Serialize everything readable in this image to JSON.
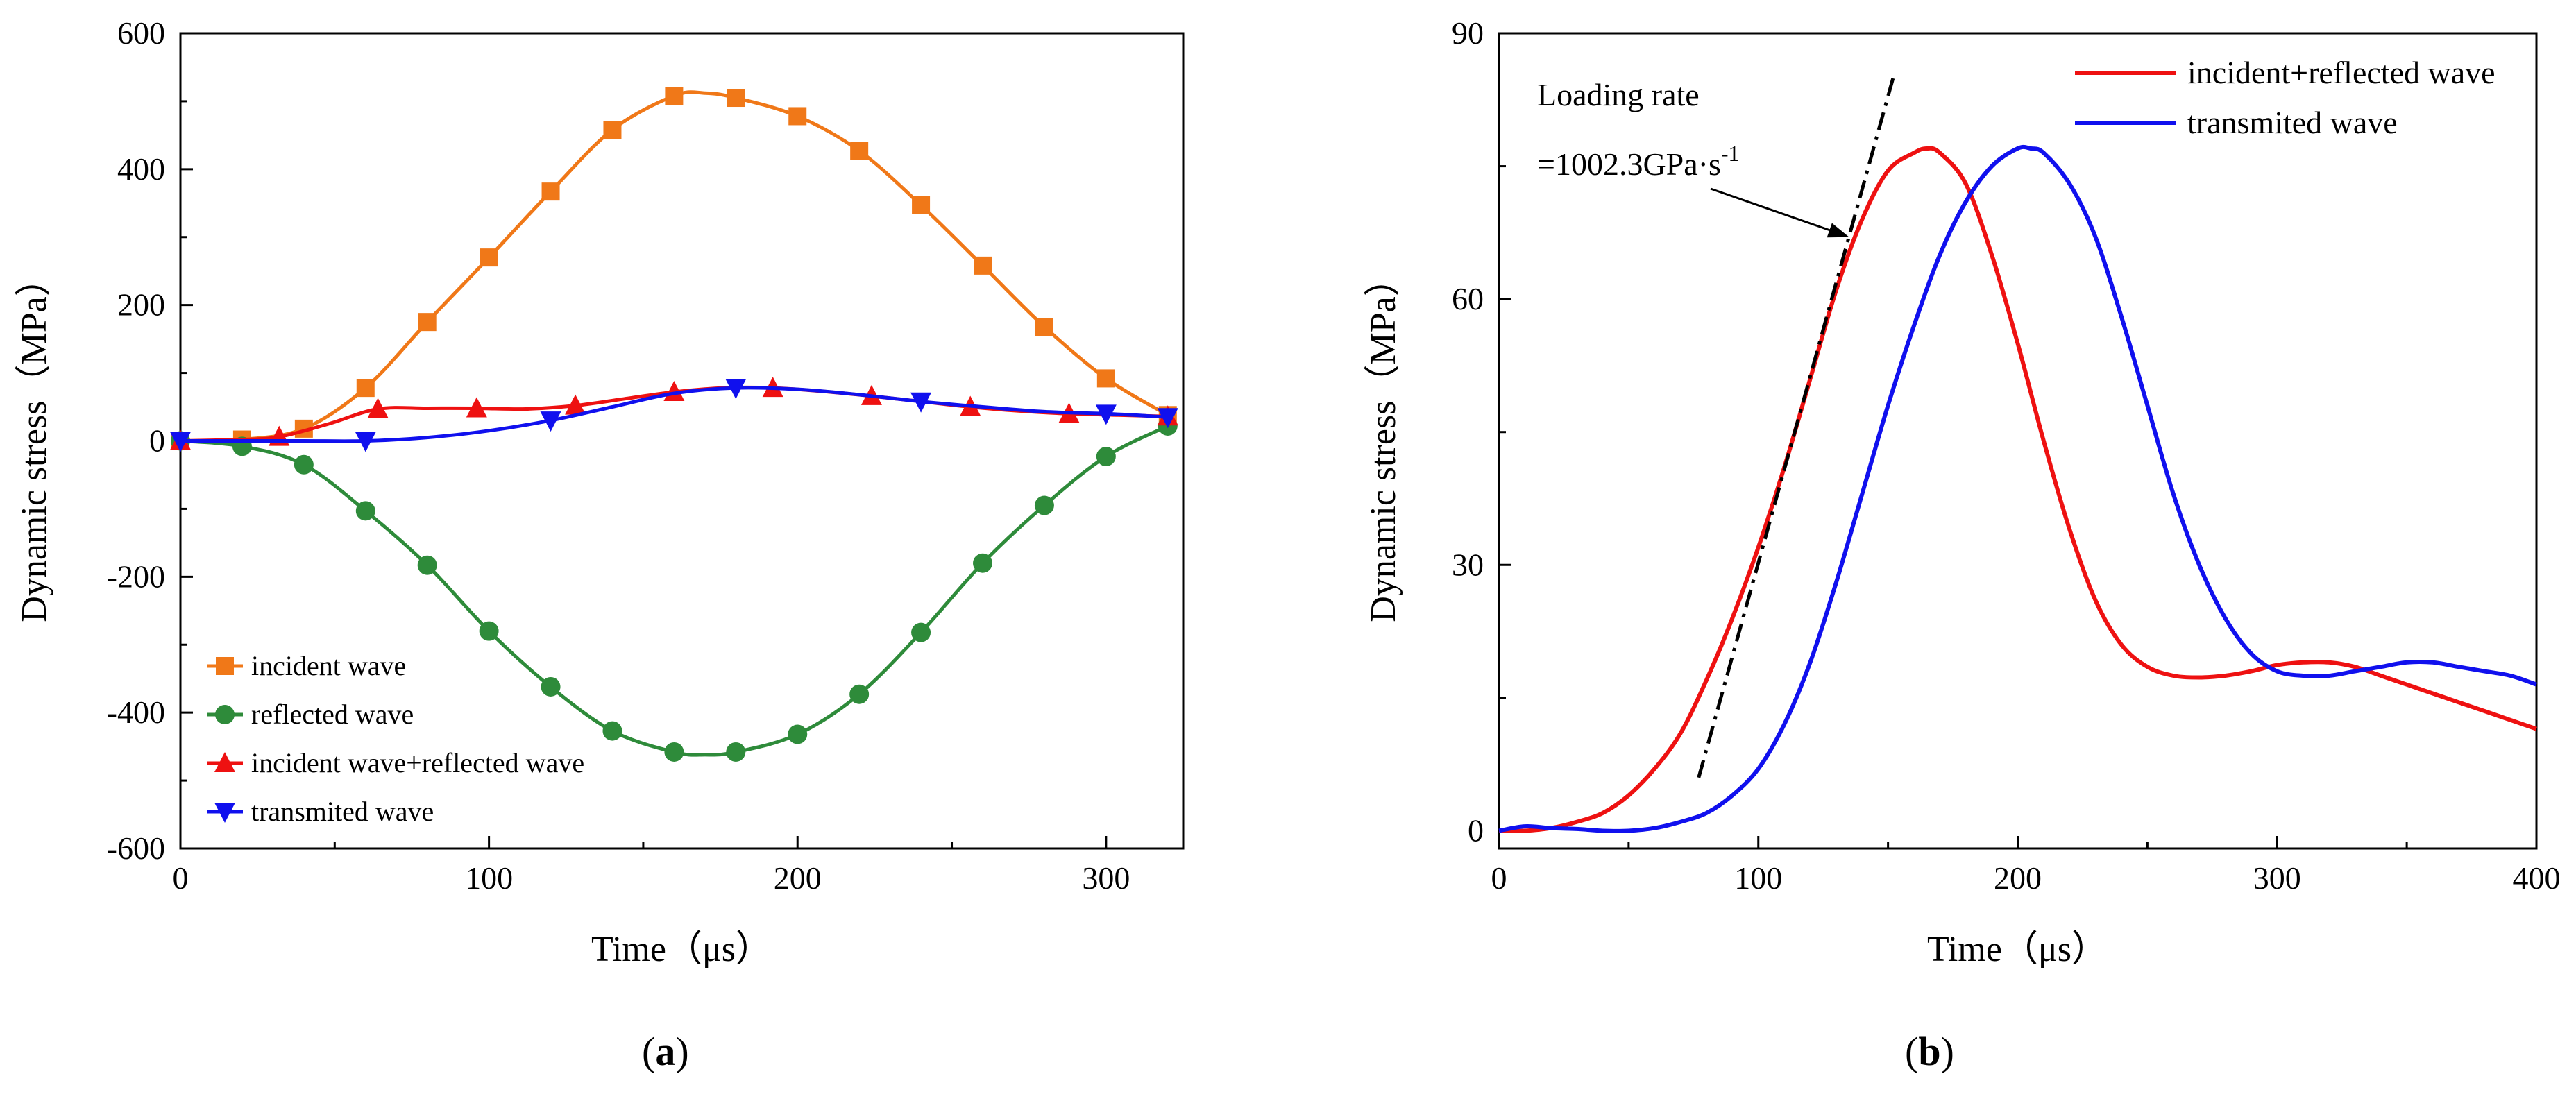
{
  "chart_data": [
    {
      "panel": "(a)",
      "panel_letter": "a",
      "type": "line",
      "xlabel": "Time（μs）",
      "ylabel": "Dynamic stress（MPa）",
      "xlim": [
        0,
        325
      ],
      "ylim": [
        -600,
        600
      ],
      "xticks": [
        0,
        100,
        200,
        300
      ],
      "yticks": [
        600,
        400,
        200,
        0,
        -200,
        -400,
        -600
      ],
      "legend_position": "lower-left",
      "series": [
        {
          "name": "incident wave",
          "color": "#f07818",
          "marker": "square",
          "x": [
            0,
            20,
            40,
            60,
            80,
            100,
            120,
            140,
            160,
            170,
            180,
            200,
            220,
            240,
            260,
            280,
            300,
            320
          ],
          "y": [
            0,
            2,
            18,
            78,
            175,
            270,
            367,
            458,
            508,
            512,
            505,
            478,
            427,
            347,
            258,
            168,
            92,
            38
          ],
          "marker_x": [
            0,
            20,
            40,
            60,
            80,
            100,
            120,
            140,
            160,
            180,
            200,
            220,
            240,
            260,
            280,
            300,
            320
          ]
        },
        {
          "name": "reflected wave",
          "color": "#2e8b3a",
          "marker": "circle",
          "x": [
            0,
            20,
            40,
            60,
            80,
            100,
            120,
            140,
            160,
            170,
            180,
            200,
            220,
            240,
            260,
            280,
            300,
            320
          ],
          "y": [
            0,
            -8,
            -35,
            -103,
            -183,
            -280,
            -362,
            -427,
            -458,
            -462,
            -458,
            -432,
            -373,
            -282,
            -180,
            -95,
            -23,
            22
          ],
          "marker_x": [
            0,
            20,
            40,
            60,
            80,
            100,
            120,
            140,
            160,
            180,
            200,
            220,
            240,
            260,
            280,
            300,
            320
          ]
        },
        {
          "name": "incident wave+reflected wave",
          "color": "#ee1111",
          "marker": "triangle-up",
          "x": [
            0,
            20,
            32,
            48,
            64,
            80,
            96,
            112,
            128,
            144,
            160,
            176,
            192,
            208,
            224,
            240,
            256,
            272,
            288,
            304,
            320
          ],
          "y": [
            0,
            2,
            6,
            25,
            47,
            48,
            48,
            47,
            52,
            62,
            72,
            78,
            78,
            73,
            66,
            58,
            50,
            44,
            40,
            38,
            36
          ],
          "marker_x": [
            0,
            32,
            64,
            96,
            128,
            160,
            192,
            224,
            256,
            288,
            320
          ]
        },
        {
          "name": "transmited wave",
          "color": "#1010ee",
          "marker": "triangle-down",
          "x": [
            0,
            20,
            40,
            60,
            80,
            100,
            120,
            140,
            160,
            180,
            200,
            220,
            240,
            260,
            280,
            300,
            320
          ],
          "y": [
            0,
            0,
            0,
            0,
            5,
            15,
            30,
            50,
            70,
            78,
            76,
            68,
            58,
            50,
            43,
            40,
            35
          ],
          "marker_x": [
            0,
            60,
            120,
            180,
            240,
            300,
            320
          ]
        }
      ]
    },
    {
      "panel": "(b)",
      "panel_letter": "b",
      "type": "line",
      "xlabel": "Time（μs）",
      "ylabel": "Dynamic stress（MPa）",
      "xlim": [
        0,
        400
      ],
      "ylim": [
        -2,
        90
      ],
      "xticks": [
        0,
        100,
        200,
        300,
        400
      ],
      "yticks": [
        90,
        60,
        30,
        0
      ],
      "legend_position": "top-right",
      "annotation": {
        "title": "Loading rate",
        "value_prefix": "=1002.3GPa·s",
        "value_exp": "-1",
        "line_from": [
          77,
          6
        ],
        "line_to": [
          152,
          85
        ],
        "arrow_target": [
          135,
          67
        ]
      },
      "series": [
        {
          "name": "incident+reflected wave",
          "color": "#ee1111",
          "x": [
            0,
            10,
            20,
            30,
            40,
            50,
            60,
            70,
            80,
            90,
            100,
            110,
            120,
            130,
            140,
            150,
            160,
            165,
            170,
            180,
            190,
            200,
            210,
            220,
            230,
            240,
            250,
            260,
            270,
            280,
            290,
            300,
            310,
            320,
            330,
            340,
            350,
            360,
            370,
            380,
            390,
            400
          ],
          "y": [
            0,
            0,
            0.3,
            1,
            2,
            4,
            7,
            11,
            17,
            24,
            32,
            41,
            51,
            61,
            69,
            74.5,
            76.5,
            77,
            76.5,
            73,
            65,
            55,
            44,
            34,
            26,
            21,
            18.5,
            17.5,
            17.3,
            17.5,
            18,
            18.7,
            19,
            19,
            18.5,
            17.5,
            16.5,
            15.5,
            14.5,
            13.5,
            12.5,
            11.5
          ]
        },
        {
          "name": "transmited wave",
          "color": "#1010ee",
          "x": [
            0,
            10,
            20,
            30,
            40,
            50,
            60,
            70,
            80,
            90,
            100,
            110,
            120,
            130,
            140,
            150,
            160,
            170,
            180,
            190,
            200,
            205,
            210,
            220,
            230,
            240,
            250,
            260,
            270,
            280,
            290,
            300,
            310,
            320,
            330,
            340,
            350,
            360,
            370,
            380,
            390,
            400
          ],
          "y": [
            0,
            0.5,
            0.3,
            0.2,
            0,
            0,
            0.3,
            1,
            2,
            4,
            7,
            12,
            19,
            28,
            38,
            48,
            57,
            65,
            71,
            75,
            77,
            77,
            76.5,
            73,
            67,
            58,
            48,
            38,
            30,
            24,
            20,
            18,
            17.5,
            17.5,
            18,
            18.5,
            19,
            19,
            18.5,
            18,
            17.5,
            16.5
          ]
        }
      ]
    }
  ]
}
